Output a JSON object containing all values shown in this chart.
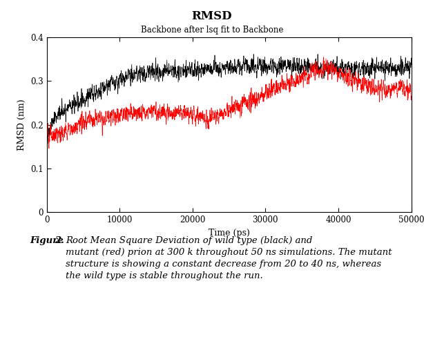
{
  "title": "RMSD",
  "subtitle": "Backbone after lsq fit to Backbone",
  "xlabel": "Time (ps)",
  "ylabel": "RMSD (nm)",
  "xlim": [
    0,
    50000
  ],
  "ylim": [
    0,
    0.4
  ],
  "xticks": [
    0,
    10000,
    20000,
    30000,
    40000,
    50000
  ],
  "yticks": [
    0,
    0.1,
    0.2,
    0.3,
    0.4
  ],
  "black_color": "#000000",
  "red_color": "#ff0000",
  "bg_color": "#ffffff",
  "seed_black": 42,
  "seed_red": 123,
  "n_points": 5000
}
